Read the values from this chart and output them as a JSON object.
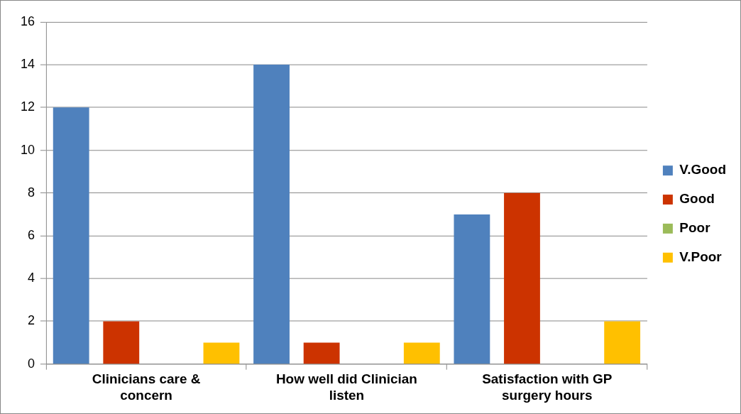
{
  "chart_data": {
    "type": "bar",
    "categories": [
      "Clinicians care & concern",
      "How well did Clinician listen",
      "Satisfaction with GP surgery hours"
    ],
    "series": [
      {
        "name": "V.Good",
        "color": "#4f81bd",
        "values": [
          12,
          14,
          7
        ]
      },
      {
        "name": "Good",
        "color": "#cc3300",
        "values": [
          2,
          1,
          8
        ]
      },
      {
        "name": "Poor",
        "color": "#9bbb59",
        "values": [
          0,
          0,
          0
        ]
      },
      {
        "name": "V.Poor",
        "color": "#ffc000",
        "values": [
          1,
          1,
          2
        ]
      }
    ],
    "ylim": [
      0,
      16
    ],
    "yticks": [
      0,
      2,
      4,
      6,
      8,
      10,
      12,
      14,
      16
    ],
    "grid": "y",
    "legend": "right"
  }
}
